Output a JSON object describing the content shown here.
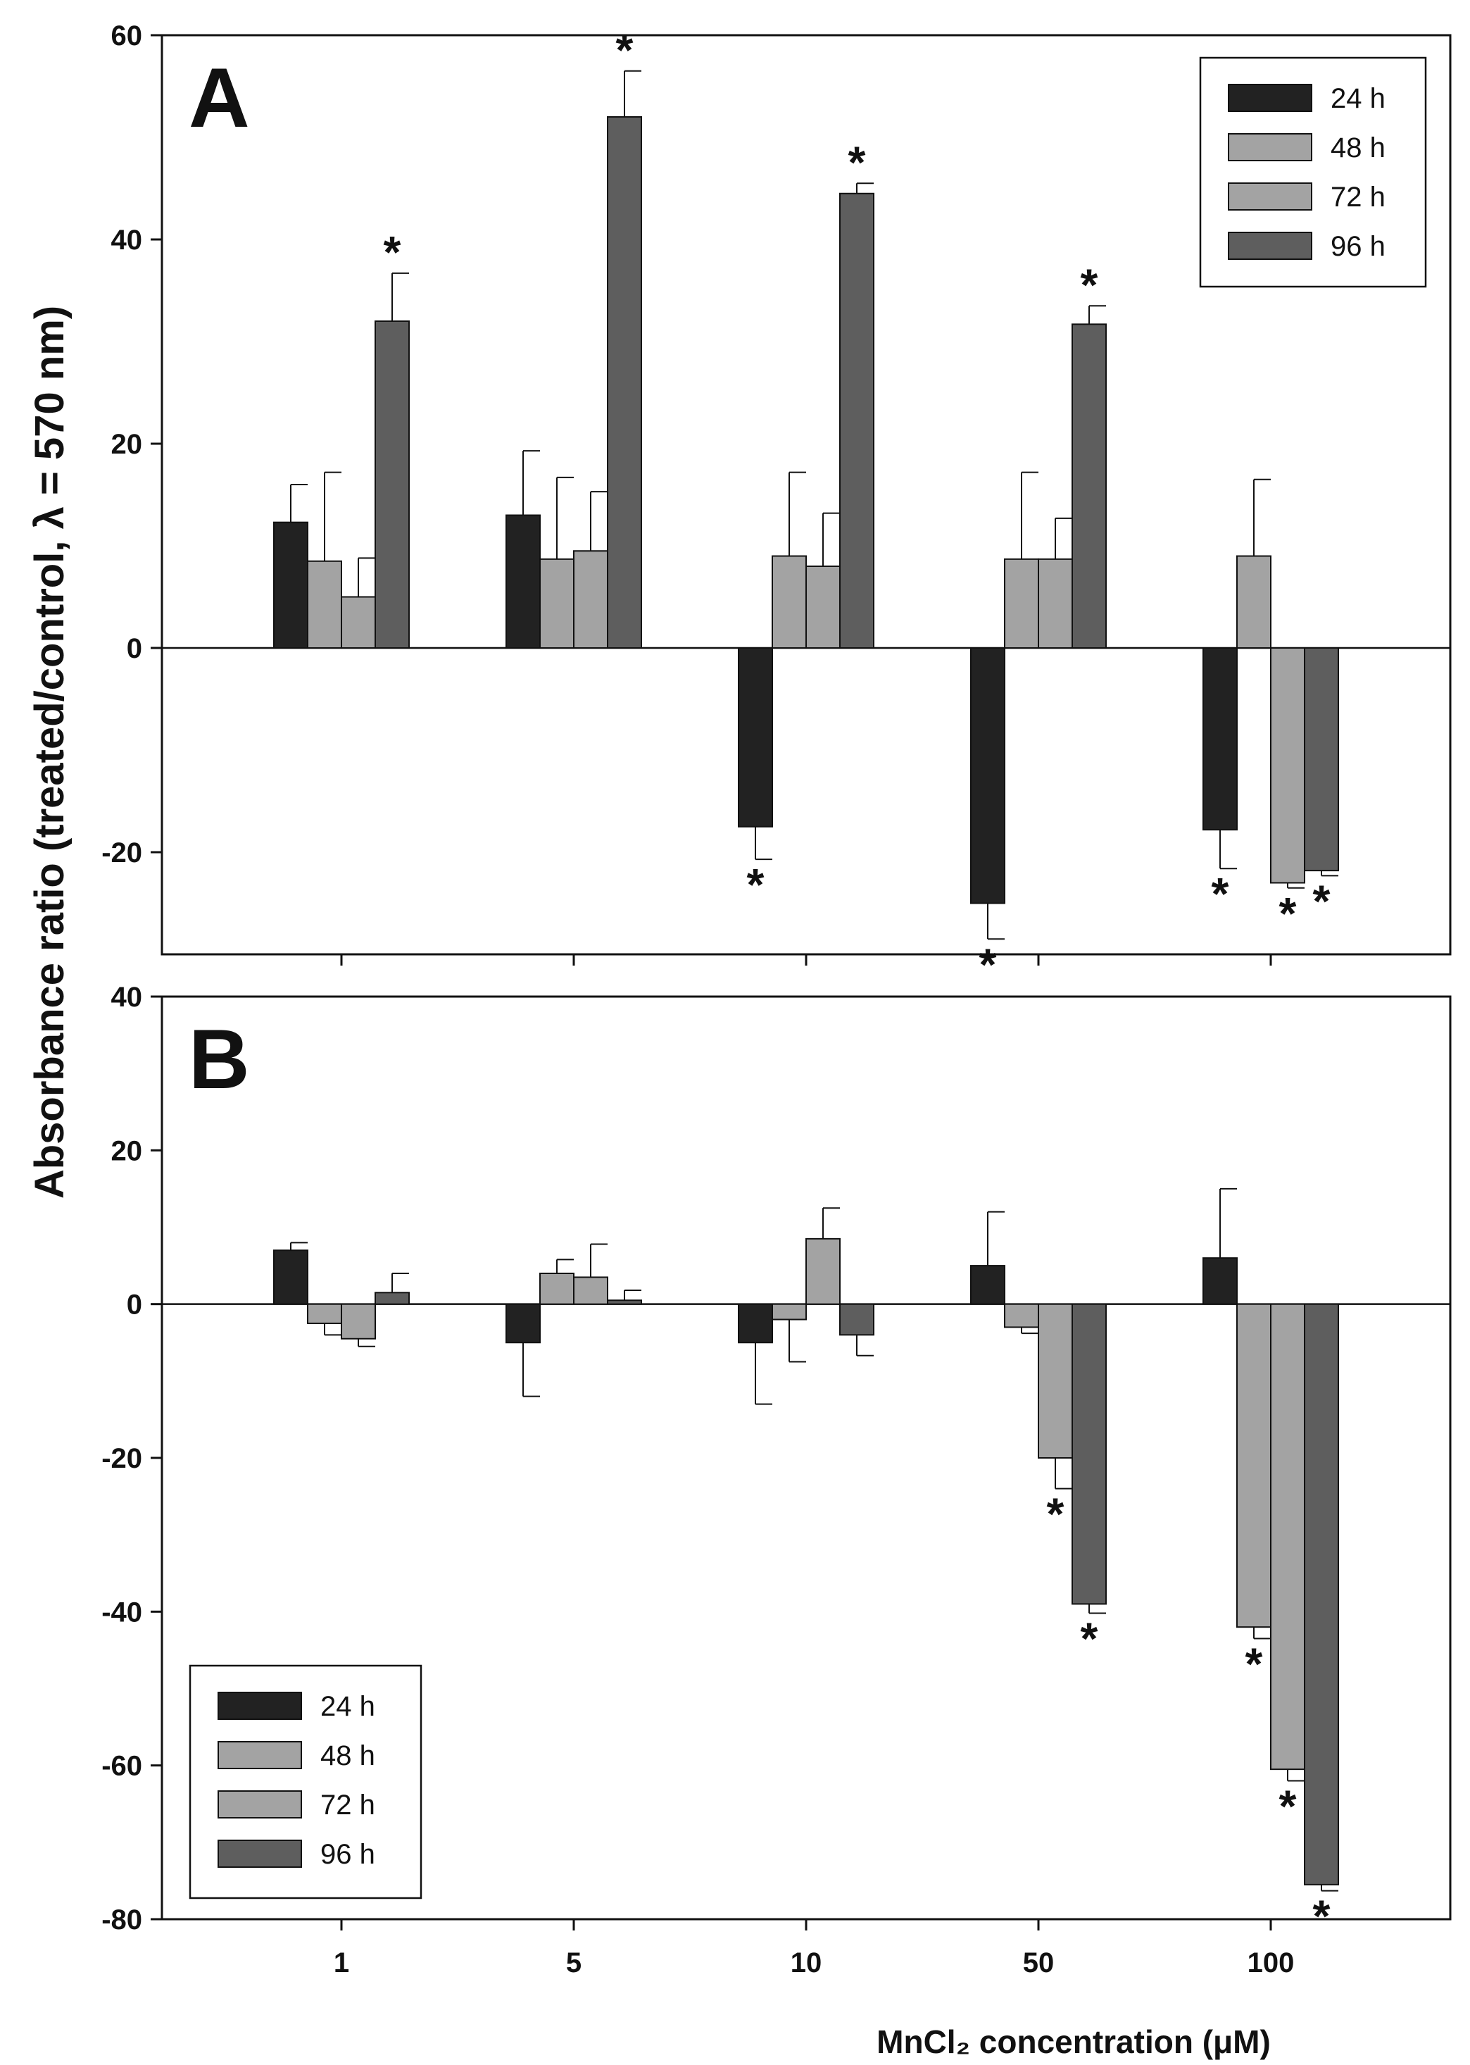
{
  "figure": {
    "ylabel": "Absorbance ratio (treated/control, λ = 570 nm)",
    "xlabel": "MnCl₂ concentration (μM)",
    "colors": {
      "24 h": "#222222",
      "48 h": "#a3a3a3",
      "72 h": "#a3a3a3",
      "96 h": "#5e5e5e"
    }
  },
  "chart_data": [
    {
      "type": "bar",
      "panel": "A",
      "categories": [
        "1",
        "5",
        "10",
        "50",
        "100"
      ],
      "ylim": [
        -30,
        60
      ],
      "yticks": [
        60,
        40,
        20,
        0,
        -20
      ],
      "legend_position": "top-right",
      "series": [
        {
          "name": "24 h",
          "values": [
            12.3,
            13.0,
            -17.5,
            -25.0,
            -17.8
          ],
          "errors": [
            3.7,
            6.3,
            3.2,
            3.5,
            3.8
          ],
          "significant": [
            false,
            false,
            true,
            true,
            true
          ]
        },
        {
          "name": "48 h",
          "values": [
            8.5,
            8.7,
            9.0,
            8.7,
            9.0
          ],
          "errors": [
            8.7,
            8.0,
            8.2,
            8.5,
            7.5
          ],
          "significant": [
            false,
            false,
            false,
            false,
            false
          ]
        },
        {
          "name": "72 h",
          "values": [
            5.0,
            9.5,
            8.0,
            8.7,
            -23.0
          ],
          "errors": [
            3.8,
            5.8,
            5.2,
            4.0,
            0.5
          ],
          "significant": [
            false,
            false,
            false,
            false,
            true
          ]
        },
        {
          "name": "96 h",
          "values": [
            32.0,
            52.0,
            44.5,
            31.7,
            -21.8
          ],
          "errors": [
            4.7,
            4.5,
            1.0,
            1.8,
            0.5
          ],
          "significant": [
            true,
            true,
            true,
            true,
            true
          ]
        }
      ]
    },
    {
      "type": "bar",
      "panel": "B",
      "categories": [
        "1",
        "5",
        "10",
        "50",
        "100"
      ],
      "ylim": [
        -80,
        40
      ],
      "yticks": [
        40,
        20,
        0,
        -20,
        -40,
        -60,
        -80
      ],
      "legend_position": "bottom-left",
      "series": [
        {
          "name": "24 h",
          "values": [
            7.0,
            -5.0,
            -5.0,
            5.0,
            6.0
          ],
          "errors": [
            1.0,
            7.0,
            8.0,
            7.0,
            9.0
          ],
          "significant": [
            false,
            false,
            false,
            false,
            false
          ]
        },
        {
          "name": "48 h",
          "values": [
            -2.5,
            4.0,
            -2.0,
            -3.0,
            -42.0
          ],
          "errors": [
            1.5,
            1.8,
            5.5,
            0.8,
            1.5
          ],
          "significant": [
            false,
            false,
            false,
            false,
            true
          ]
        },
        {
          "name": "72 h",
          "values": [
            -4.5,
            3.5,
            8.5,
            -20.0,
            -60.5
          ],
          "errors": [
            1.0,
            4.3,
            4.0,
            4.0,
            1.5
          ],
          "significant": [
            false,
            false,
            false,
            true,
            true
          ]
        },
        {
          "name": "96 h",
          "values": [
            1.5,
            0.5,
            -4.0,
            -39.0,
            -75.5
          ],
          "errors": [
            2.5,
            1.3,
            2.7,
            1.2,
            0.8
          ],
          "significant": [
            false,
            false,
            false,
            true,
            true
          ]
        }
      ]
    }
  ]
}
